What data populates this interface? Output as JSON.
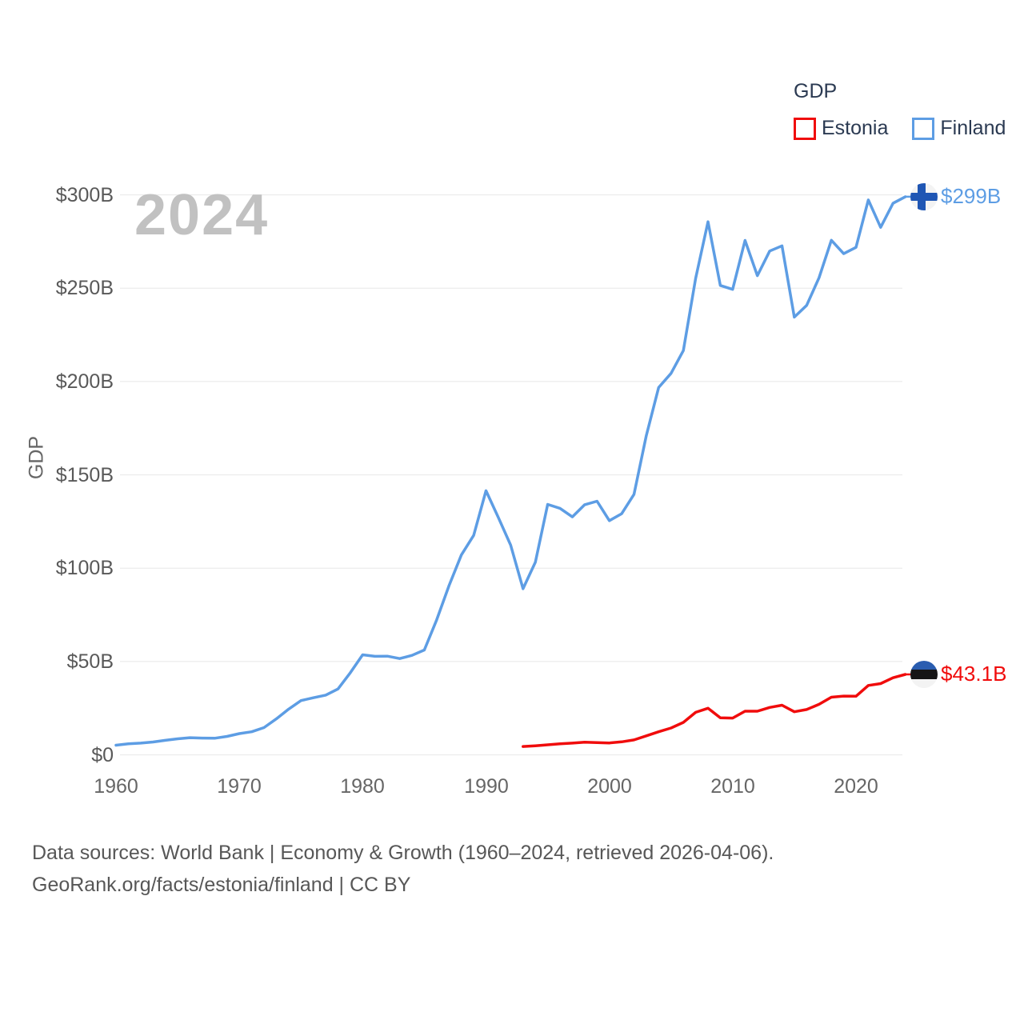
{
  "watermark": "2024",
  "legend": {
    "title": "GDP",
    "items": [
      {
        "label": "Estonia",
        "color": "#f00c0c"
      },
      {
        "label": "Finland",
        "color": "#5d9de4"
      }
    ]
  },
  "y_axis": {
    "title": "GDP",
    "tick_labels": [
      "$0",
      "$50B",
      "$100B",
      "$150B",
      "$200B",
      "$250B",
      "$300B"
    ],
    "tick_values": [
      0,
      50,
      100,
      150,
      200,
      250,
      300
    ]
  },
  "x_axis": {
    "tick_labels": [
      "1960",
      "1970",
      "1980",
      "1990",
      "2000",
      "2010",
      "2020"
    ],
    "tick_values": [
      1960,
      1970,
      1980,
      1990,
      2000,
      2010,
      2020
    ]
  },
  "footer": {
    "line1": "Data sources: World Bank | Economy & Growth (1960–2024, retrieved 2026-04-06).",
    "line2": "GeoRank.org/facts/estonia/finland | CC BY"
  },
  "chart_data": {
    "type": "line",
    "title": "GDP",
    "xlabel": "",
    "ylabel": "GDP",
    "x_range": [
      1960,
      2024
    ],
    "ylim": [
      0,
      300
    ],
    "yticks_billions": [
      0,
      50,
      100,
      150,
      200,
      250,
      300
    ],
    "grid": "horizontal",
    "legend_position": "top-right",
    "units": "billions USD",
    "series": [
      {
        "name": "Estonia",
        "color": "#f00c0c",
        "start_year": 1993,
        "end_year": 2024,
        "end_label": "$43.1B",
        "flag_icon": "estonia-flag",
        "values": [
          4.5,
          4.9,
          5.4,
          5.9,
          6.3,
          6.8,
          6.6,
          6.4,
          7.0,
          8.0,
          10.2,
          12.4,
          14.4,
          17.4,
          22.8,
          25.0,
          19.9,
          19.7,
          23.4,
          23.4,
          25.4,
          26.6,
          23.1,
          24.3,
          27.1,
          30.9,
          31.5,
          31.4,
          37.2,
          38.2,
          41.3,
          43.1
        ]
      },
      {
        "name": "Finland",
        "color": "#5d9de4",
        "start_year": 1960,
        "end_year": 2024,
        "end_label": "$299B",
        "flag_icon": "finland-flag",
        "values": [
          5.2,
          5.9,
          6.3,
          6.9,
          7.8,
          8.6,
          9.2,
          9.0,
          8.9,
          9.9,
          11.4,
          12.4,
          14.6,
          19.3,
          24.5,
          29.1,
          30.6,
          32.0,
          35.3,
          44.0,
          53.6,
          52.8,
          52.9,
          51.6,
          53.3,
          56.2,
          72.3,
          90.7,
          107.1,
          117.6,
          141.5,
          127.2,
          112.4,
          89.0,
          103.2,
          134.2,
          132.1,
          127.5,
          134.0,
          135.9,
          125.5,
          129.2,
          139.6,
          171.1,
          196.8,
          204.4,
          216.6,
          255.4,
          285.6,
          251.5,
          249.4,
          275.6,
          256.7,
          269.9,
          272.7,
          234.5,
          240.8,
          255.6,
          275.7,
          268.5,
          271.9,
          297.3,
          282.6,
          295.5,
          299.0
        ]
      }
    ]
  }
}
